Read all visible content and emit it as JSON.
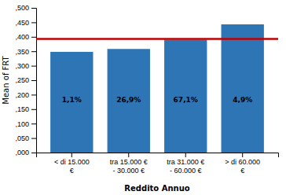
{
  "chart_data": {
    "type": "bar",
    "xlabel": "Reddito Annuo",
    "ylabel": "Mean of FRT",
    "categories": [
      "< di 15.000\n€",
      "tra 15.000 €\n- 30.000 €",
      "tra 31.000 €\n- 60.000 €",
      "> di 60.000\n€"
    ],
    "values": [
      0.348,
      0.358,
      0.39,
      0.443
    ],
    "color": "#2E75B6",
    "reference_line": {
      "value": 0.393,
      "color": "#C00000"
    },
    "annotations": [
      {
        "text": "1,1%",
        "x": "< di 15.000\n€",
        "y": 0.18
      },
      {
        "text": "26,9%",
        "x": "tra 15.000 €\n- 30.000 €",
        "y": 0.18
      },
      {
        "text": "67,1%",
        "x": "tra 31.000 €\n- 60.000 €",
        "y": 0.18
      },
      {
        "text": "4,9%",
        "x": "> di 60.000\n€",
        "y": 0.18
      }
    ],
    "ylim": [
      0,
      0.5
    ],
    "yticks": [
      {
        "value": 0,
        "label": ",000"
      },
      {
        "value": 0.05,
        "label": ",050"
      },
      {
        "value": 0.1,
        "label": ",100"
      },
      {
        "value": 0.15,
        "label": ",150"
      },
      {
        "value": 0.2,
        "label": ",200"
      },
      {
        "value": 0.25,
        "label": ",250"
      },
      {
        "value": 0.3,
        "label": ",300"
      },
      {
        "value": 0.35,
        "label": ",350"
      },
      {
        "value": 0.4,
        "label": ",400"
      },
      {
        "value": 0.45,
        "label": ",450"
      },
      {
        "value": 0.5,
        "label": ",500"
      }
    ],
    "grid": false
  }
}
